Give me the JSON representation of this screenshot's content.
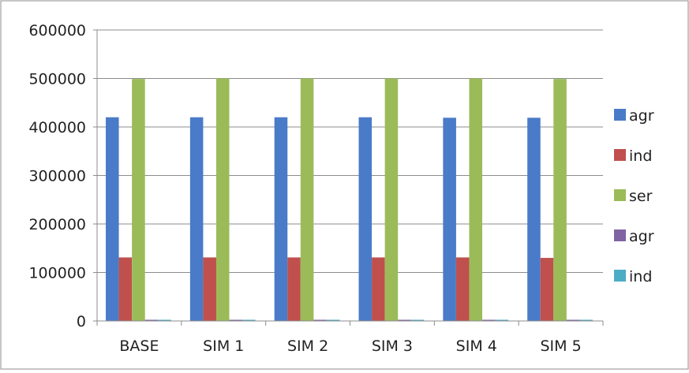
{
  "chart_data": {
    "type": "bar",
    "categories": [
      "BASE",
      "SIM 1",
      "SIM 2",
      "SIM 3",
      "SIM 4",
      "SIM 5"
    ],
    "series": [
      {
        "name": "agr",
        "color": "#4A7BC8",
        "values": [
          420000,
          420000,
          420000,
          420000,
          419000,
          419000
        ]
      },
      {
        "name": "ind",
        "color": "#C0504D",
        "values": [
          131000,
          131000,
          131000,
          131000,
          131000,
          130000
        ]
      },
      {
        "name": "ser",
        "color": "#9BBB59",
        "values": [
          499000,
          500000,
          500000,
          500000,
          500000,
          499000
        ]
      },
      {
        "name": "agr",
        "color": "#8064A2",
        "values": [
          2000,
          1000,
          1000,
          1000,
          1000,
          1000
        ]
      },
      {
        "name": "ind",
        "color": "#4BACC6",
        "values": [
          2000,
          1000,
          1000,
          1000,
          1000,
          1000
        ]
      }
    ],
    "y_ticks": [
      "600000",
      "500000",
      "400000",
      "300000",
      "200000",
      "100000",
      "0"
    ],
    "ylim": [
      0,
      600000
    ],
    "title": "",
    "xlabel": "",
    "ylabel": "",
    "grid": true,
    "legend_position": "right"
  }
}
